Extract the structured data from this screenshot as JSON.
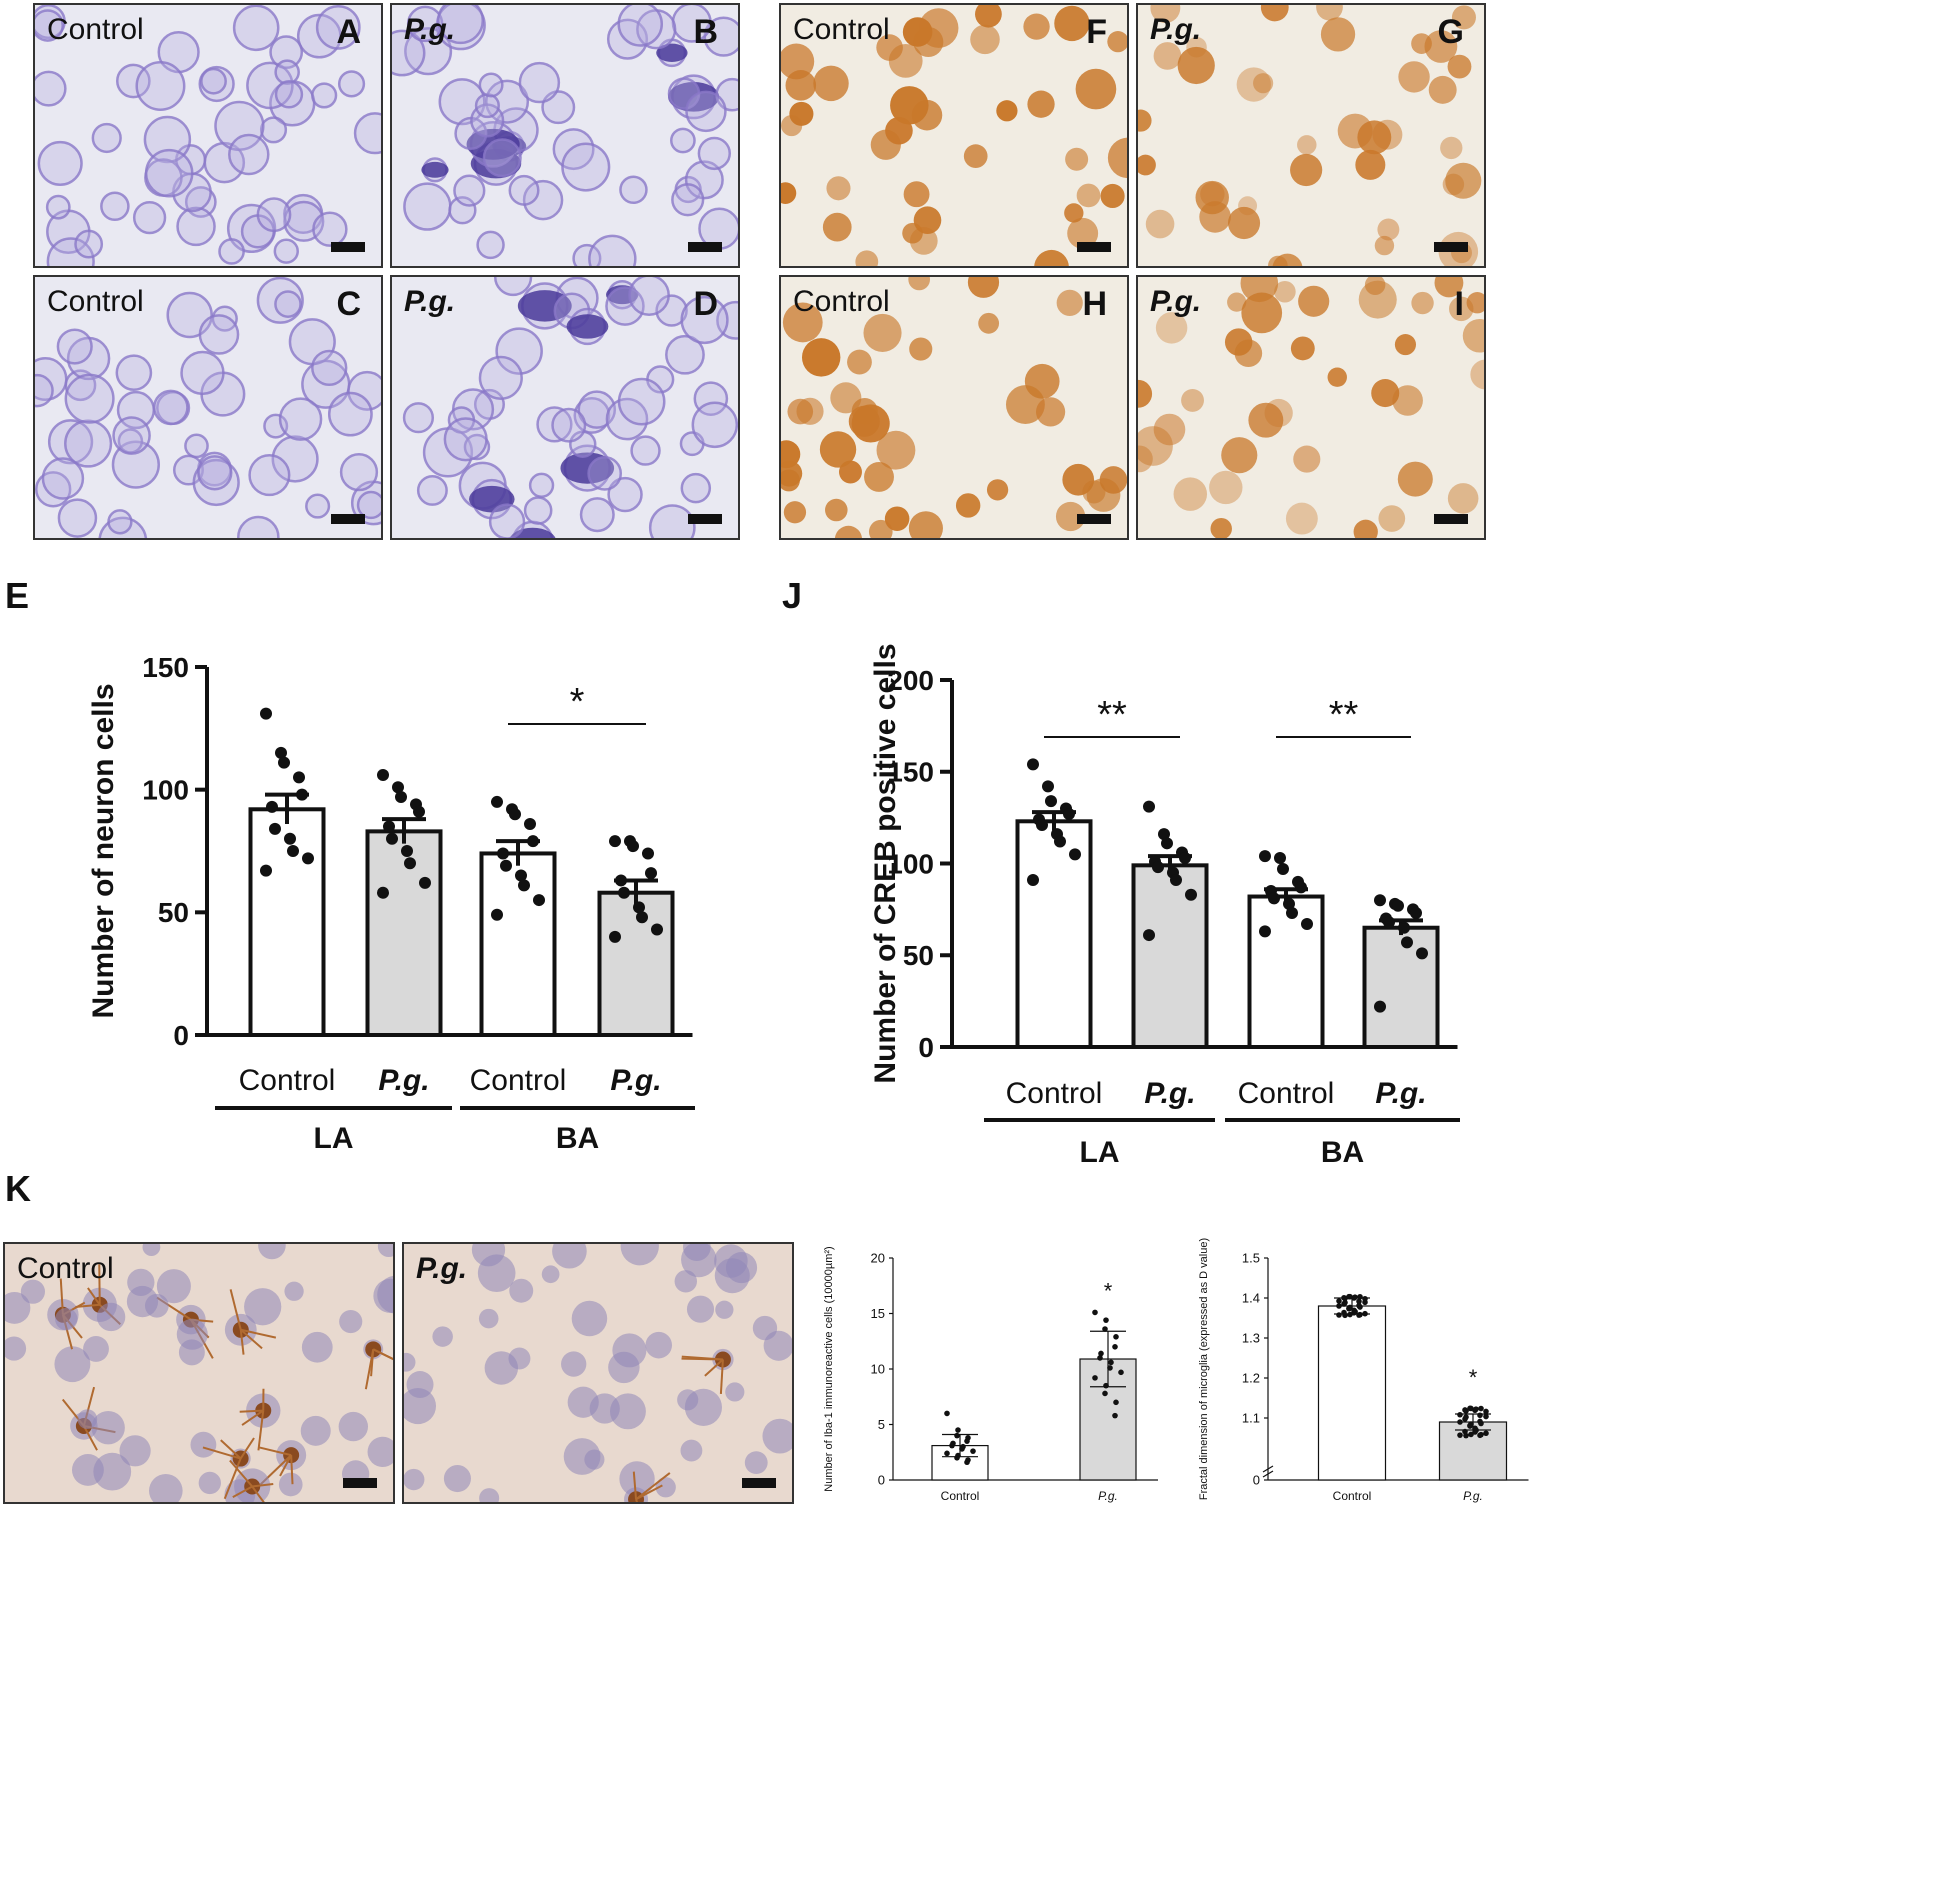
{
  "figure": {
    "panels": {
      "A": {
        "letter": "A",
        "condition": "Control"
      },
      "B": {
        "letter": "B",
        "condition": "P.g."
      },
      "C": {
        "letter": "C",
        "condition": "Control"
      },
      "D": {
        "letter": "D",
        "condition": "P.g."
      },
      "F": {
        "letter": "F",
        "condition": "Control"
      },
      "G": {
        "letter": "G",
        "condition": "P.g."
      },
      "H": {
        "letter": "H",
        "condition": "Control"
      },
      "I": {
        "letter": "I",
        "condition": "P.g."
      },
      "K1": {
        "condition": "Control"
      },
      "K2": {
        "condition": "P.g."
      }
    },
    "letters": {
      "E": "E",
      "J": "J",
      "K": "K"
    },
    "colors": {
      "nissl_stain": "#8a78c8",
      "creb_stain": "#c9782a",
      "iba_stain": "#8a4a20",
      "pg_bar": "#d9d9d9",
      "control_bar": "#ffffff"
    }
  },
  "chart_data": [
    {
      "id": "E",
      "type": "bar",
      "ylabel": "Number of neuron cells",
      "ylim": [
        0,
        150
      ],
      "yticks": [
        0,
        50,
        100,
        150
      ],
      "categories": [
        "Control",
        "P.g.",
        "Control",
        "P.g."
      ],
      "groups": [
        "LA",
        "BA"
      ],
      "values": [
        92,
        83,
        74,
        58
      ],
      "sem": [
        6,
        5,
        5,
        5
      ],
      "points": [
        [
          131,
          115,
          111,
          105,
          98,
          93,
          84,
          80,
          75,
          72,
          67
        ],
        [
          106,
          101,
          97,
          94,
          91,
          85,
          80,
          75,
          70,
          62,
          58
        ],
        [
          95,
          92,
          90,
          86,
          79,
          74,
          69,
          65,
          61,
          55,
          49
        ],
        [
          79,
          79,
          77,
          74,
          66,
          63,
          58,
          52,
          48,
          43,
          40
        ]
      ],
      "significance": [
        {
          "label": "*",
          "from": 2,
          "to": 3
        }
      ]
    },
    {
      "id": "J",
      "type": "bar",
      "ylabel": "Number of CREB positive cells",
      "ylim": [
        0,
        200
      ],
      "yticks": [
        0,
        50,
        100,
        150,
        200
      ],
      "categories": [
        "Control",
        "P.g.",
        "Control",
        "P.g."
      ],
      "groups": [
        "LA",
        "BA"
      ],
      "values": [
        123,
        99,
        82,
        65
      ],
      "sem": [
        5,
        5,
        4,
        4
      ],
      "points": [
        [
          154,
          142,
          134,
          130,
          127,
          124,
          121,
          116,
          112,
          105,
          91
        ],
        [
          131,
          116,
          111,
          106,
          103,
          101,
          98,
          95,
          91,
          83,
          61
        ],
        [
          104,
          103,
          97,
          90,
          87,
          85,
          81,
          78,
          73,
          67,
          63
        ],
        [
          80,
          78,
          77,
          75,
          73,
          70,
          68,
          65,
          57,
          51,
          22
        ]
      ],
      "significance": [
        {
          "label": "**",
          "from": 0,
          "to": 1
        },
        {
          "label": "**",
          "from": 2,
          "to": 3
        }
      ]
    },
    {
      "id": "K3",
      "type": "bar",
      "ylabel": "Number of Iba-1 immunoreactive cells (10000µm²)",
      "ylim": [
        0,
        20
      ],
      "yticks": [
        0,
        5,
        10,
        15,
        20
      ],
      "categories": [
        "Control",
        "P.g."
      ],
      "values": [
        3.1,
        10.9
      ],
      "sd": [
        1.0,
        2.5
      ],
      "points": [
        [
          6.0,
          4.5,
          4.0,
          3.8,
          3.5,
          3.3,
          3.1,
          3.0,
          2.8,
          2.6,
          2.4,
          2.2,
          2.0,
          1.8,
          1.6
        ],
        [
          15.1,
          14.4,
          13.6,
          12.9,
          12.0,
          11.4,
          11.0,
          10.6,
          10.1,
          9.7,
          9.2,
          8.5,
          7.8,
          7.0,
          5.8
        ]
      ],
      "significance": [
        {
          "label": "*",
          "over": 1
        }
      ]
    },
    {
      "id": "K4",
      "type": "bar",
      "ylabel": "Fractal dimension of microglia (expressed as D value)",
      "ylim": [
        1.0,
        1.5
      ],
      "yticks": [
        0,
        1.1,
        1.2,
        1.3,
        1.4,
        1.5
      ],
      "axis_break": true,
      "categories": [
        "Control",
        "P.g."
      ],
      "values": [
        1.38,
        1.09
      ],
      "sd": [
        0.02,
        0.02
      ],
      "point_spread": [
        0.026,
        0.038
      ],
      "significance": [
        {
          "label": "*",
          "over": 1
        }
      ]
    }
  ]
}
